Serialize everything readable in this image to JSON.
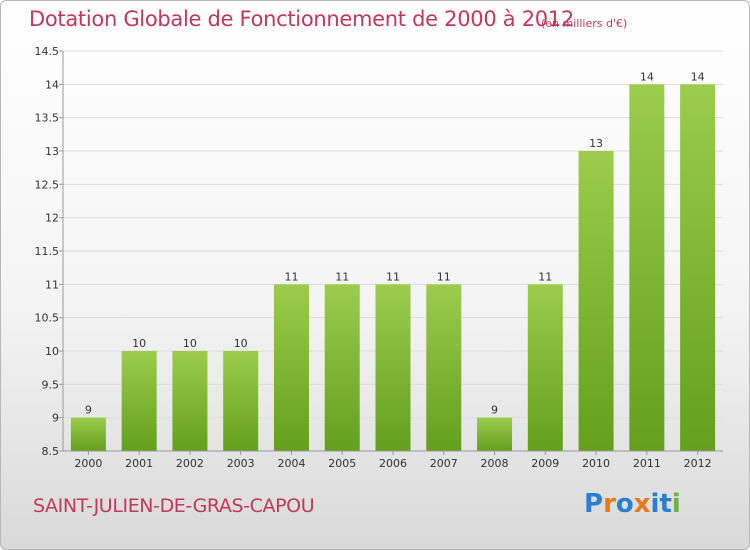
{
  "header": {
    "title": "Dotation Globale de Fonctionnement de 2000 à 2012",
    "unit": "(en milliers d'€)"
  },
  "footer": {
    "commune": "SAINT-JULIEN-DE-GRAS-CAPOU",
    "logo": "Proxiti"
  },
  "colors": {
    "bar_light": "#9ccc4c",
    "bar_dark": "#63a01c",
    "title": "#c0395a"
  },
  "chart_data": {
    "type": "bar",
    "title": "Dotation Globale de Fonctionnement de 2000 à 2012",
    "xlabel": "",
    "ylabel": "",
    "categories": [
      "2000",
      "2001",
      "2002",
      "2003",
      "2004",
      "2005",
      "2006",
      "2007",
      "2008",
      "2009",
      "2010",
      "2011",
      "2012"
    ],
    "values": [
      9,
      10,
      10,
      10,
      11,
      11,
      11,
      11,
      9,
      11,
      13,
      14,
      14
    ],
    "data_labels": [
      "9",
      "10",
      "10",
      "10",
      "11",
      "11",
      "11",
      "11",
      "9",
      "11",
      "13",
      "14",
      "14"
    ],
    "ylim": [
      8.5,
      14.5
    ],
    "yticks": [
      8.5,
      9,
      9.5,
      10,
      10.5,
      11,
      11.5,
      12,
      12.5,
      13,
      13.5,
      14,
      14.5
    ],
    "ytick_labels": [
      "8.5",
      "9",
      "9.5",
      "10",
      "10.5",
      "11",
      "11.5",
      "12",
      "12.5",
      "13",
      "13.5",
      "14",
      "14.5"
    ],
    "grid": true,
    "legend": "none"
  }
}
